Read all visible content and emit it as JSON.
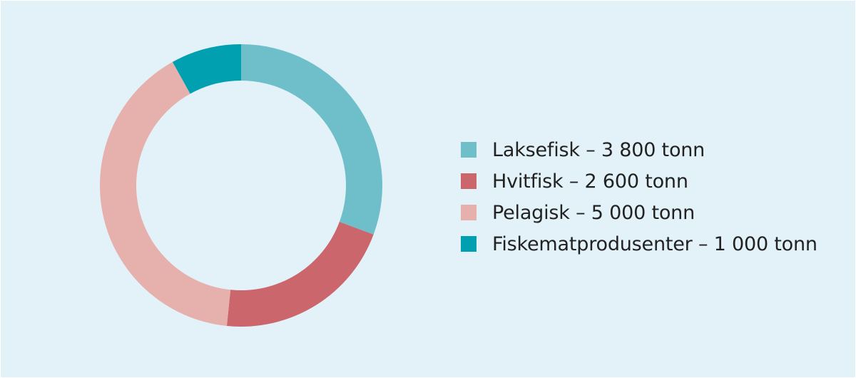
{
  "chart_data": {
    "type": "pie",
    "title": "",
    "categories": [
      "Laksefisk",
      "Hvitfisk",
      "Pelagisk",
      "Fiskematprodusenter"
    ],
    "values": [
      3800,
      2600,
      5000,
      1000
    ],
    "unit": "tonn",
    "colors": [
      "#6fbfcb",
      "#cc666d",
      "#e6b0ad",
      "#00a0b0"
    ],
    "legend": {
      "placement": "right",
      "entries": [
        "Laksefisk – 3 800 tonn",
        "Hvitfisk – 2 600 tonn",
        "Pelagisk – 5 000 tonn",
        "Fiskematprodusenter – 1 000 tonn"
      ]
    },
    "donut": true,
    "start_angle": "12 o'clock",
    "direction": "clockwise"
  }
}
